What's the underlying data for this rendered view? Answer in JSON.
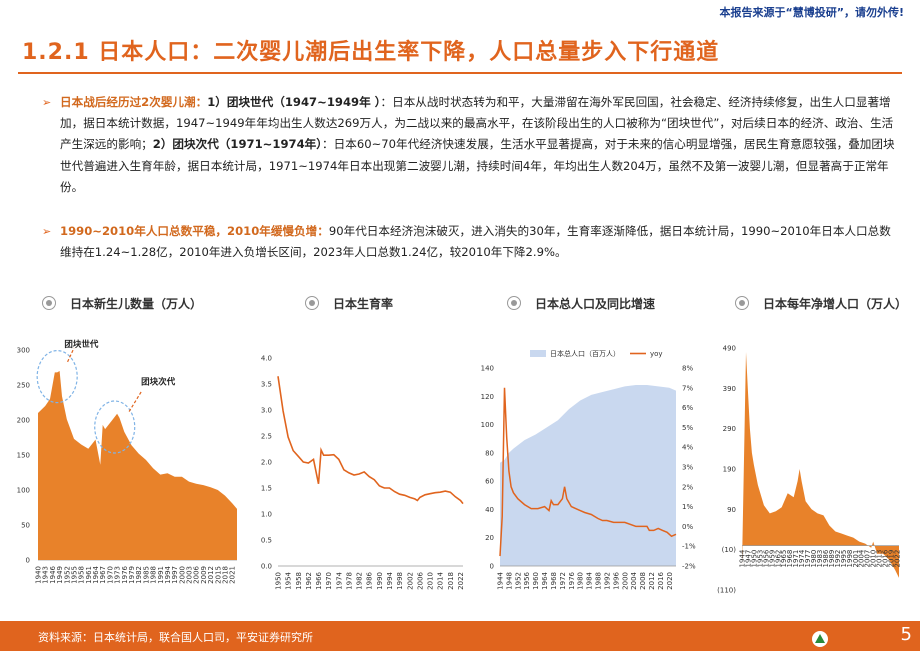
{
  "header": {
    "notice": "本报告来源于“慧博投研”，请勿外传!",
    "title": "1.2.1 日本人口：二次婴儿潮后出生率下降，人口总量步入下行通道"
  },
  "bullets": [
    {
      "highlight": "日本战后经历过2次婴儿潮：",
      "p1_bold": "1）团块世代（1947~1949年 ）",
      "p1_text": "：日本从战时状态转为和平，大量滞留在海外军民回国，社会稳定、经济持续修复，出生人口显著增加，据日本统计数据，1947~1949年年均出生人数达269万人，为二战以来的最高水平，在该阶段出生的人口被称为“团块世代”，对后续日本的经济、政治、生活产生深远的影响；",
      "p2_bold": "2）团块次代（1971~1974年）",
      "p2_text": "：日本60~70年代经济快速发展，生活水平显著提高，对于未来的信心明显增强，居民生育意愿较强，叠加团块世代普遍进入生育年龄，据日本统计局，1971~1974年日本出现第二波婴儿潮，持续时间4年，年均出生人数204万，虽然不及第一波婴儿潮，但显著高于正常年份。"
    },
    {
      "highlight": "1990~2010年人口总数平稳，2010年缓慢负增：",
      "text": "90年代日本经济泡沫破灭，进入消失的30年，生育率逐渐降低，据日本统计局，1990~2010年日本人口总数维持在1.24~1.28亿，2010年进入负增长区间，2023年人口总数1.24亿，较2010年下降2.9%。"
    }
  ],
  "chart_titles": [
    "日本新生儿数量（万人）",
    "日本生育率",
    "日本总人口及同比增速",
    "日本每年净增人口（万人）"
  ],
  "footer": {
    "source": "资料来源：日本统计局，联合国人口司，平安证券研究所",
    "page": "5"
  },
  "colors": {
    "accent": "#e0641e",
    "area": "#e8822a",
    "line": "#e0641e",
    "pop_area": "#c9d8ef",
    "notice": "#1a3f8f"
  },
  "icons": [
    "radio-icon",
    "arrow-bullet-icon",
    "logo-icon"
  ],
  "chart_data": [
    {
      "type": "area",
      "title": "日本新生儿数量（万人）",
      "x": [
        1940,
        1943,
        1945,
        1947,
        1948,
        1949,
        1950,
        1952,
        1955,
        1958,
        1961,
        1964,
        1966,
        1967,
        1968,
        1971,
        1973,
        1974,
        1976,
        1979,
        1982,
        1985,
        1988,
        1991,
        1994,
        1997,
        2000,
        2003,
        2006,
        2009,
        2012,
        2015,
        2018,
        2021,
        2023
      ],
      "y": [
        210,
        220,
        230,
        268,
        268,
        270,
        234,
        201,
        173,
        165,
        159,
        172,
        136,
        193,
        187,
        200,
        209,
        203,
        183,
        164,
        152,
        143,
        131,
        122,
        124,
        119,
        119,
        112,
        109,
        107,
        104,
        100,
        92,
        81,
        73
      ],
      "xticks": [
        "1940",
        "1943",
        "1946",
        "1949",
        "1952",
        "1955",
        "1958",
        "1961",
        "1964",
        "1967",
        "1970",
        "1973",
        "1976",
        "1979",
        "1982",
        "1985",
        "1988",
        "1991",
        "1994",
        "1997",
        "2000",
        "2003",
        "2006",
        "2009",
        "2012",
        "2015",
        "2018",
        "2021"
      ],
      "ylim": [
        0,
        300
      ],
      "yticks": [
        "0",
        "50",
        "100",
        "150",
        "200",
        "250",
        "300"
      ],
      "annotations": [
        "团块世代",
        "团块次代"
      ]
    },
    {
      "type": "line",
      "title": "日本生育率",
      "x": [
        1950,
        1952,
        1954,
        1956,
        1958,
        1960,
        1962,
        1964,
        1966,
        1967,
        1968,
        1970,
        1972,
        1974,
        1976,
        1978,
        1980,
        1982,
        1984,
        1986,
        1988,
        1990,
        1992,
        1994,
        1996,
        1998,
        2000,
        2002,
        2004,
        2005,
        2006,
        2008,
        2010,
        2012,
        2014,
        2016,
        2018,
        2020,
        2022,
        2023
      ],
      "y": [
        3.65,
        2.98,
        2.48,
        2.22,
        2.11,
        2.0,
        1.98,
        2.05,
        1.58,
        2.23,
        2.13,
        2.13,
        2.14,
        2.05,
        1.85,
        1.79,
        1.75,
        1.77,
        1.81,
        1.72,
        1.66,
        1.54,
        1.5,
        1.5,
        1.43,
        1.38,
        1.36,
        1.32,
        1.29,
        1.26,
        1.32,
        1.37,
        1.39,
        1.41,
        1.42,
        1.44,
        1.42,
        1.33,
        1.26,
        1.2
      ],
      "xticks": [
        "1950",
        "1954",
        "1958",
        "1962",
        "1966",
        "1970",
        "1974",
        "1978",
        "1982",
        "1986",
        "1990",
        "1994",
        "1998",
        "2002",
        "2006",
        "2010",
        "2014",
        "2018",
        "2022"
      ],
      "ylim": [
        0,
        4.0
      ],
      "yticks": [
        "0.0",
        "0.5",
        "1.0",
        "1.5",
        "2.0",
        "2.5",
        "3.0",
        "3.5",
        "4.0"
      ]
    },
    {
      "type": "area+line",
      "title": "日本总人口及同比增速",
      "legend": [
        "日本总人口（百万人）",
        "yoy"
      ],
      "x": [
        1944,
        1946,
        1948,
        1950,
        1955,
        1960,
        1965,
        1970,
        1975,
        1980,
        1985,
        1990,
        1995,
        2000,
        2005,
        2008,
        2010,
        2015,
        2020,
        2023
      ],
      "population": [
        73,
        75,
        80,
        83,
        89,
        93,
        98,
        103,
        111,
        117,
        121,
        123,
        125,
        127,
        128,
        128,
        128,
        127,
        126,
        124
      ],
      "yoy_x": [
        1944,
        1945,
        1946,
        1947,
        1948,
        1949,
        1950,
        1952,
        1955,
        1958,
        1961,
        1964,
        1966,
        1967,
        1968,
        1970,
        1972,
        1973,
        1974,
        1976,
        1978,
        1980,
        1982,
        1985,
        1988,
        1990,
        1992,
        1995,
        2000,
        2005,
        2008,
        2010,
        2011,
        2013,
        2015,
        2017,
        2019,
        2021,
        2023
      ],
      "yoy": [
        -1.5,
        0.5,
        7.0,
        4.5,
        2.8,
        2.0,
        1.7,
        1.4,
        1.1,
        0.9,
        0.9,
        1.0,
        0.8,
        1.3,
        1.1,
        1.1,
        1.4,
        2.0,
        1.4,
        1.0,
        0.9,
        0.8,
        0.7,
        0.6,
        0.4,
        0.3,
        0.3,
        0.2,
        0.2,
        0.0,
        0.0,
        0.0,
        -0.2,
        -0.2,
        -0.1,
        -0.2,
        -0.3,
        -0.5,
        -0.4
      ],
      "xticks": [
        "1944",
        "1948",
        "1952",
        "1956",
        "1960",
        "1964",
        "1968",
        "1972",
        "1976",
        "1980",
        "1984",
        "1988",
        "1992",
        "1996",
        "2000",
        "2004",
        "2008",
        "2012",
        "2016",
        "2020"
      ],
      "ylim_left": [
        0,
        140
      ],
      "yticks_left": [
        "0",
        "20",
        "40",
        "60",
        "80",
        "100",
        "120",
        "140"
      ],
      "ylim_right": [
        -2,
        8
      ],
      "yticks_right": [
        "-2%",
        "-1%",
        "0%",
        "1%",
        "2%",
        "3%",
        "4%",
        "5%",
        "6%",
        "7%",
        "8%"
      ]
    },
    {
      "type": "area",
      "title": "日本每年净增人口（万人）",
      "x": [
        1944,
        1946,
        1947,
        1948,
        1949,
        1950,
        1952,
        1955,
        1958,
        1961,
        1964,
        1967,
        1970,
        1972,
        1973,
        1974,
        1976,
        1979,
        1982,
        1985,
        1988,
        1991,
        1994,
        1997,
        2000,
        2003,
        2006,
        2009,
        2010,
        2012,
        2015,
        2018,
        2021,
        2023
      ],
      "y": [
        -50,
        480,
        380,
        290,
        230,
        200,
        150,
        100,
        80,
        85,
        95,
        130,
        120,
        160,
        190,
        160,
        110,
        90,
        80,
        75,
        50,
        35,
        30,
        25,
        20,
        10,
        5,
        -5,
        10,
        -20,
        -20,
        -35,
        -60,
        -80
      ],
      "xticks": [
        "1944",
        "1947",
        "1950",
        "1953",
        "1956",
        "1959",
        "1962",
        "1965",
        "1968",
        "1971",
        "1974",
        "1977",
        "1980",
        "1983",
        "1986",
        "1989",
        "1992",
        "1995",
        "1998",
        "2001",
        "2004",
        "2007",
        "2010",
        "2013",
        "2016",
        "2019",
        "2022"
      ],
      "ylim": [
        -110,
        490
      ],
      "yticks": [
        "(110)",
        "(10)",
        "90",
        "190",
        "290",
        "390",
        "490"
      ]
    }
  ]
}
